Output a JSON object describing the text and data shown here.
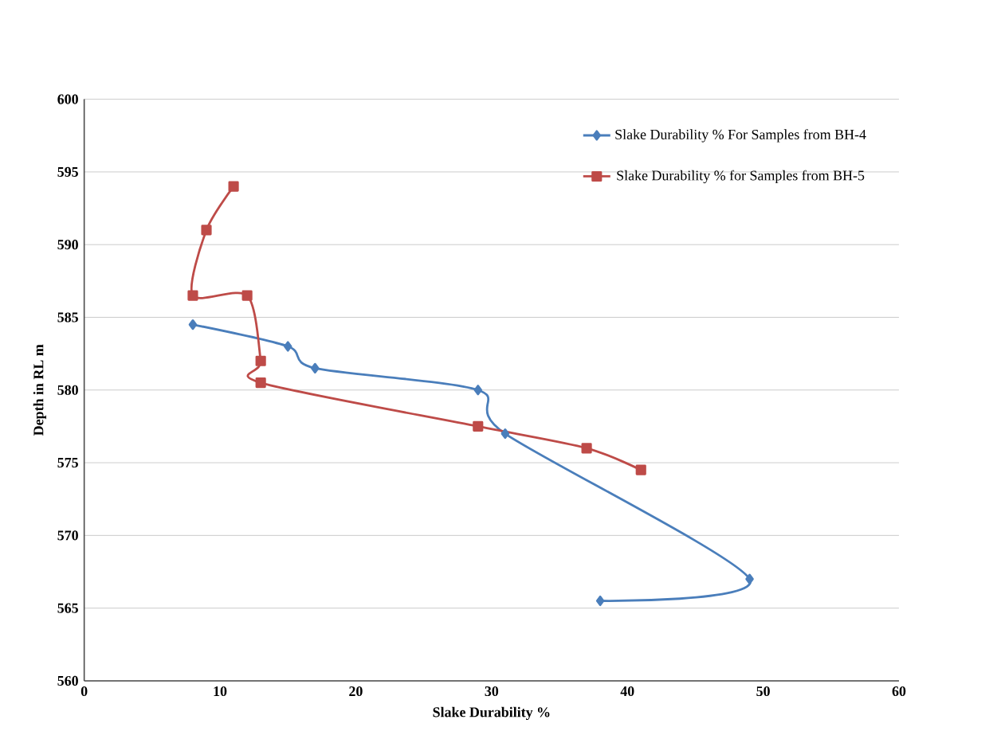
{
  "chart_data": {
    "type": "line",
    "xlabel": "Slake Durability  %",
    "ylabel": "Depth  in RL m",
    "xlim": [
      0,
      60
    ],
    "xticks": [
      0,
      10,
      20,
      30,
      40,
      50,
      60
    ],
    "ylim": [
      560,
      600
    ],
    "yticks": [
      560,
      565,
      570,
      575,
      580,
      585,
      590,
      595,
      600
    ],
    "grid": "y",
    "legend": "top right",
    "line_style": "solid",
    "series": [
      {
        "name": "Slake Durability % For Samples from BH-4",
        "color": "#4a7ebb",
        "marker": "diamond",
        "x": [
          8,
          15,
          17,
          29,
          31,
          49,
          38
        ],
        "values": [
          584.5,
          583,
          581.5,
          580,
          577,
          567,
          565.5
        ]
      },
      {
        "name": "Slake Durability % for Samples from BH-5",
        "color": "#be4b48",
        "marker": "square",
        "x": [
          11,
          9,
          8,
          12,
          13,
          13,
          29,
          37,
          41
        ],
        "values": [
          594,
          591,
          586.5,
          586.5,
          582,
          580.5,
          577.5,
          576,
          574.5
        ]
      }
    ]
  }
}
